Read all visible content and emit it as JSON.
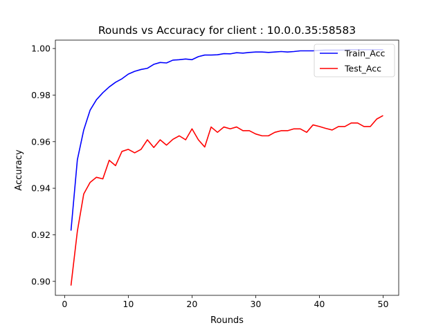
{
  "chart_data": {
    "type": "line",
    "title": "Rounds vs Accuracy for client : 10.0.0.35:58583",
    "xlabel": "Rounds",
    "ylabel": "Accuracy",
    "xlim": [
      -1.45,
      52.45
    ],
    "ylim": [
      0.894,
      1.0036
    ],
    "xticks": [
      0,
      10,
      20,
      30,
      40,
      50
    ],
    "yticks": [
      0.9,
      0.92,
      0.94,
      0.96,
      0.98,
      1.0
    ],
    "ytick_labels": [
      "0.90",
      "0.92",
      "0.94",
      "0.96",
      "0.98",
      "1.00"
    ],
    "grid": false,
    "legend": "top-right",
    "x": [
      1,
      2,
      3,
      4,
      5,
      6,
      7,
      8,
      9,
      10,
      11,
      12,
      13,
      14,
      15,
      16,
      17,
      18,
      19,
      20,
      21,
      22,
      23,
      24,
      25,
      26,
      27,
      28,
      29,
      30,
      31,
      32,
      33,
      34,
      35,
      36,
      37,
      38,
      39,
      40,
      41,
      42,
      43,
      44,
      45,
      46,
      47,
      48,
      49,
      50
    ],
    "series": [
      {
        "name": "Train_Acc",
        "color": "#0000ff",
        "values": [
          0.9218,
          0.9522,
          0.965,
          0.9735,
          0.978,
          0.981,
          0.9835,
          0.9855,
          0.987,
          0.989,
          0.9902,
          0.991,
          0.9915,
          0.9932,
          0.994,
          0.9938,
          0.995,
          0.9952,
          0.9955,
          0.9952,
          0.9965,
          0.9972,
          0.9972,
          0.9973,
          0.9978,
          0.9977,
          0.9982,
          0.998,
          0.9983,
          0.9985,
          0.9985,
          0.9983,
          0.9985,
          0.9987,
          0.9985,
          0.9987,
          0.999,
          0.999,
          0.999,
          0.9992,
          0.9993,
          0.9993,
          0.9993,
          0.9993,
          0.9995,
          0.9995,
          0.9995,
          0.9995,
          0.9995,
          0.9995
        ]
      },
      {
        "name": "Test_Acc",
        "color": "#ff0000",
        "values": [
          0.8982,
          0.9215,
          0.9375,
          0.9425,
          0.9447,
          0.944,
          0.952,
          0.9497,
          0.9558,
          0.9567,
          0.9552,
          0.9567,
          0.9608,
          0.9575,
          0.9608,
          0.9585,
          0.961,
          0.9625,
          0.9608,
          0.9655,
          0.9608,
          0.9577,
          0.9663,
          0.964,
          0.9663,
          0.9655,
          0.9663,
          0.9647,
          0.9647,
          0.9633,
          0.9625,
          0.9625,
          0.964,
          0.9647,
          0.9647,
          0.9655,
          0.9655,
          0.964,
          0.9672,
          0.9665,
          0.9657,
          0.965,
          0.9665,
          0.9665,
          0.968,
          0.968,
          0.9665,
          0.9665,
          0.9697,
          0.9712
        ]
      }
    ]
  }
}
